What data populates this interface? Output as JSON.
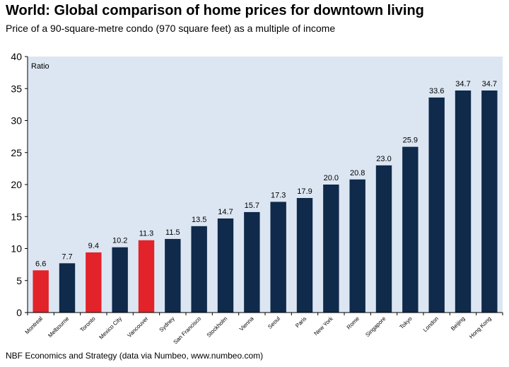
{
  "title": "World: Global comparison of home prices for downtown living",
  "subtitle": "Price of a 90-square-metre condo (970 square feet) as a multiple of income",
  "source": "NBF Economics and Strategy (data via Numbeo, www.numbeo.com)",
  "chart_data": {
    "type": "bar",
    "ylabel": "Ratio",
    "ylim": [
      0,
      40
    ],
    "yticks": [
      "0",
      "5",
      "10",
      "15",
      "20",
      "25",
      "30",
      "35",
      "40"
    ],
    "grid": false,
    "categories": [
      "Montreal",
      "Melbourne",
      "Toronto",
      "Mexico City",
      "Vancouver",
      "Sydney",
      "San Francisco",
      "Stockholm",
      "Vienna",
      "Seoul",
      "Paris",
      "New York",
      "Rome",
      "Singapore",
      "Tokyo",
      "London",
      "Beijing",
      "Hong Kong"
    ],
    "values": [
      6.6,
      7.7,
      9.4,
      10.2,
      11.3,
      11.5,
      13.5,
      14.7,
      15.7,
      17.3,
      17.9,
      20.0,
      20.8,
      23.0,
      25.9,
      33.6,
      34.7,
      34.7
    ],
    "value_labels": [
      "6.6",
      "7.7",
      "9.4",
      "10.2",
      "11.3",
      "11.5",
      "13.5",
      "14.7",
      "15.7",
      "17.3",
      "17.9",
      "20.0",
      "20.8",
      "23.0",
      "25.9",
      "33.6",
      "34.7",
      "34.7"
    ],
    "highlight": [
      "Montreal",
      "Toronto",
      "Vancouver"
    ],
    "colors": {
      "plot_bg": "#dce6f2",
      "bar": "#0f2a4a",
      "highlight": "#e2232a"
    }
  }
}
